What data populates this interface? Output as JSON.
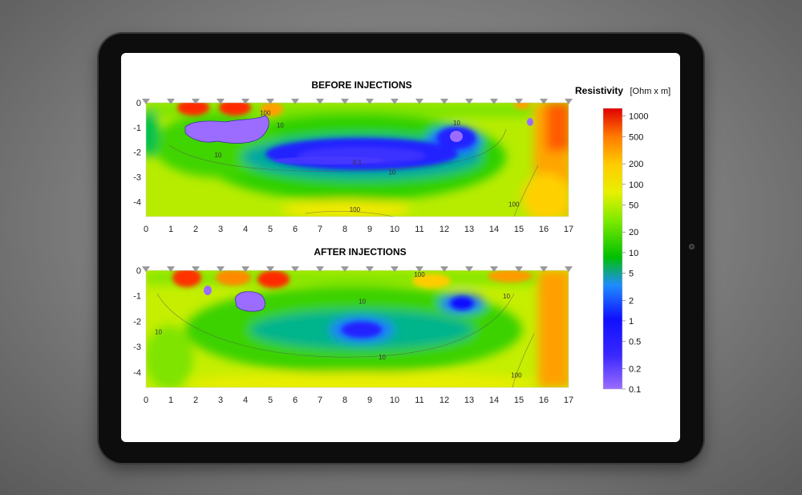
{
  "colors": {
    "scale": [
      "#9b6cff",
      "#1010ff",
      "#1f8cff",
      "#00d000",
      "#7dea00",
      "#d4f000",
      "#ffe100",
      "#ff9500",
      "#ff3c00",
      "#e00000"
    ]
  },
  "colorbar": {
    "title": "Resistivity",
    "unit": "[Ohm x m]",
    "ticks": [
      "1000",
      "500",
      "200",
      "100",
      "50",
      "20",
      "10",
      "5",
      "2",
      "1",
      "0.5",
      "0.2",
      "0.1"
    ]
  },
  "chart_data": [
    {
      "type": "heatmap",
      "title": "BEFORE INJECTIONS",
      "xlabel": "",
      "ylabel": "",
      "xlim": [
        0,
        17
      ],
      "ylim": [
        -4.6,
        0
      ],
      "x_ticks": [
        "0",
        "1",
        "2",
        "3",
        "4",
        "5",
        "6",
        "7",
        "8",
        "9",
        "10",
        "11",
        "12",
        "13",
        "14",
        "15",
        "16",
        "17"
      ],
      "y_ticks": [
        "0",
        "-1",
        "-2",
        "-3",
        "-4"
      ],
      "electrodes_x": [
        0,
        1,
        2,
        3,
        4,
        5,
        6,
        7,
        8,
        9,
        10,
        11,
        12,
        13,
        14,
        15,
        16,
        17
      ],
      "contour_labels": [
        {
          "text": "100",
          "x": 4.8,
          "y": -0.5
        },
        {
          "text": "10",
          "x": 5.4,
          "y": -1.0
        },
        {
          "text": "10",
          "x": 2.9,
          "y": -2.2
        },
        {
          "text": "10",
          "x": 12.5,
          "y": -0.9
        },
        {
          "text": "0.1",
          "x": 8.5,
          "y": -2.5
        },
        {
          "text": "10",
          "x": 9.9,
          "y": -2.9
        },
        {
          "text": "100",
          "x": 8.4,
          "y": -4.4
        },
        {
          "text": "100",
          "x": 14.8,
          "y": -4.2
        }
      ],
      "anomalies": [
        {
          "kind": "high",
          "x": 1.9,
          "y": -0.25,
          "rho": 1000
        },
        {
          "kind": "high",
          "x": 3.6,
          "y": -0.25,
          "rho": 1000
        },
        {
          "kind": "high",
          "x": 5.1,
          "y": -0.25,
          "rho": 300
        },
        {
          "kind": "low",
          "x": 3.3,
          "y": -1.1,
          "rho": 0.1
        },
        {
          "kind": "low",
          "x": 8.4,
          "y": -2.0,
          "rho": 0.5
        },
        {
          "kind": "low",
          "x": 12.5,
          "y": -1.5,
          "rho": 0.3
        },
        {
          "kind": "low",
          "x": 15.5,
          "y": -0.7,
          "rho": 0.3
        },
        {
          "kind": "high",
          "x": 16.6,
          "y": -2.0,
          "rho": 700
        }
      ]
    },
    {
      "type": "heatmap",
      "title": "AFTER INJECTIONS",
      "xlabel": "",
      "ylabel": "",
      "xlim": [
        0,
        17
      ],
      "ylim": [
        -4.6,
        0
      ],
      "x_ticks": [
        "0",
        "1",
        "2",
        "3",
        "4",
        "5",
        "6",
        "7",
        "8",
        "9",
        "10",
        "11",
        "12",
        "13",
        "14",
        "15",
        "16",
        "17"
      ],
      "y_ticks": [
        "0",
        "-1",
        "-2",
        "-3",
        "-4"
      ],
      "electrodes_x": [
        0,
        1,
        2,
        3,
        4,
        5,
        6,
        7,
        8,
        9,
        10,
        11,
        12,
        13,
        14,
        15,
        16,
        17
      ],
      "contour_labels": [
        {
          "text": "100",
          "x": 11.0,
          "y": -0.25
        },
        {
          "text": "10",
          "x": 14.5,
          "y": -1.1
        },
        {
          "text": "10",
          "x": 8.7,
          "y": -1.3
        },
        {
          "text": "10",
          "x": 0.5,
          "y": -2.5
        },
        {
          "text": "10",
          "x": 9.5,
          "y": -3.5
        },
        {
          "text": "100",
          "x": 14.9,
          "y": -4.2
        }
      ],
      "anomalies": [
        {
          "kind": "high",
          "x": 1.7,
          "y": -0.3,
          "rho": 1000
        },
        {
          "kind": "high",
          "x": 3.5,
          "y": -0.3,
          "rho": 500
        },
        {
          "kind": "high",
          "x": 5.0,
          "y": -0.3,
          "rho": 800
        },
        {
          "kind": "low",
          "x": 2.6,
          "y": -0.8,
          "rho": 0.2
        },
        {
          "kind": "low",
          "x": 4.2,
          "y": -1.1,
          "rho": 0.1
        },
        {
          "kind": "low",
          "x": 9.2,
          "y": -2.4,
          "rho": 2
        },
        {
          "kind": "low",
          "x": 12.8,
          "y": -1.3,
          "rho": 2
        },
        {
          "kind": "high",
          "x": 14.6,
          "y": -0.2,
          "rho": 300
        },
        {
          "kind": "high",
          "x": 16.6,
          "y": -2.0,
          "rho": 400
        }
      ]
    }
  ]
}
